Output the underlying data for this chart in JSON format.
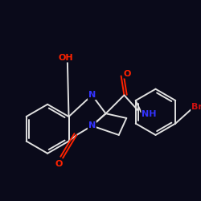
{
  "bg_color": "#0a0a1a",
  "bond_color": "#e0e0e0",
  "atom_colors": {
    "N": "#3333ff",
    "O": "#ff2200",
    "Br": "#cc1111",
    "C": "#e0e0e0"
  },
  "figsize": [
    2.5,
    2.5
  ],
  "dpi": 100
}
